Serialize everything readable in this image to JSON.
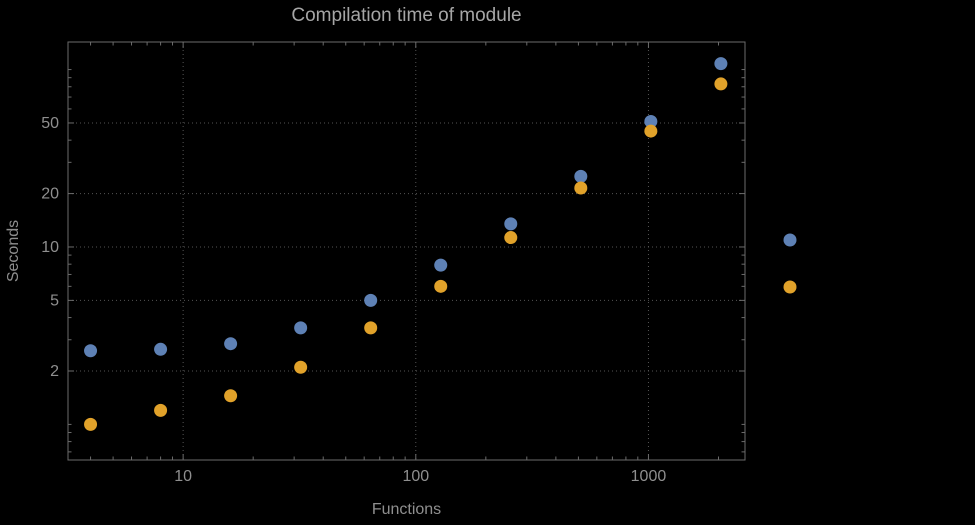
{
  "theme": {
    "background": "#000000",
    "title_color": "#a6a6a6",
    "label_color": "#8f8f8f",
    "frame_color": "#6b6b6b",
    "grid_color": "#555555"
  },
  "chart_data": {
    "type": "scatter",
    "title": "Compilation time of module",
    "xlabel": "Functions",
    "ylabel": "Seconds",
    "x_scale": "log",
    "y_scale": "log",
    "xlim": [
      3.2,
      2600
    ],
    "ylim": [
      0.63,
      143
    ],
    "x_ticks": [
      10,
      100,
      1000
    ],
    "y_ticks": [
      2,
      5,
      10,
      20,
      50
    ],
    "x_gridlines": [
      10,
      100,
      1000
    ],
    "y_gridlines": [
      2,
      5,
      10,
      20,
      50
    ],
    "grid_style": "dotted",
    "legend_position": "right",
    "categories": [
      4,
      8,
      16,
      32,
      64,
      128,
      256,
      512,
      1024,
      2048
    ],
    "series": [
      {
        "name": "",
        "color": "#5e81b5",
        "values": [
          2.6,
          2.65,
          2.85,
          3.5,
          5.0,
          7.9,
          13.5,
          25,
          51,
          108
        ]
      },
      {
        "name": "",
        "color": "#e1a22a",
        "values": [
          1.0,
          1.2,
          1.45,
          2.1,
          3.5,
          6.0,
          11.3,
          21.5,
          45,
          83
        ]
      }
    ],
    "legend": {
      "markers": [
        {
          "color": "#5e81b5"
        },
        {
          "color": "#e1a22a"
        }
      ]
    }
  }
}
